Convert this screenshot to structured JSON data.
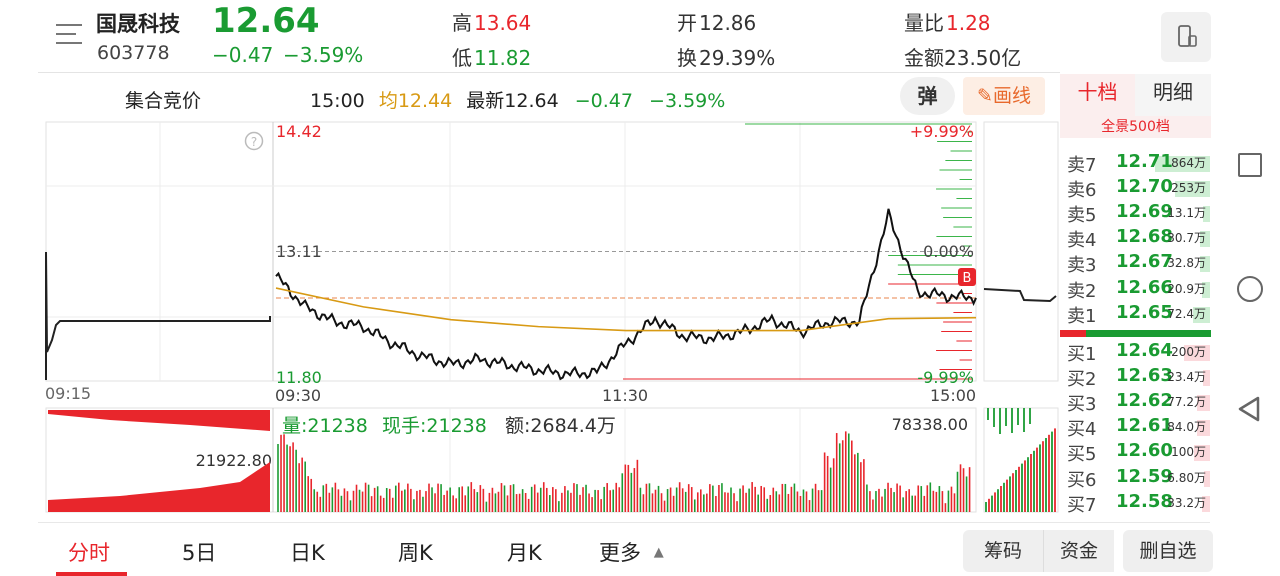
{
  "stock": {
    "name": "国晟科技",
    "code": "603778",
    "price": "12.64",
    "change": "−0.47",
    "change_pct": "−3.59%"
  },
  "stats": {
    "high_label": "高",
    "high": "13.64",
    "low_label": "低",
    "low": "11.82",
    "open_label": "开",
    "open": "12.86",
    "turnover_label": "换",
    "turnover": "29.39%",
    "volratio_label": "量比",
    "volratio": "1.28",
    "amount_label": "金额",
    "amount": "23.50亿"
  },
  "subheader": {
    "label": "集合竞价",
    "time": "15:00",
    "avg_label": "均",
    "avg": "12.44",
    "latest_label": "最新",
    "latest": "12.64",
    "change": "−0.47",
    "change_pct": "−3.59%",
    "bullet_label": "弹",
    "draw_label": "画线"
  },
  "chart_data": {
    "type": "line",
    "title": "",
    "xlabel": "",
    "ylabel": "",
    "ylim": [
      11.8,
      14.42
    ],
    "y_ticks": [
      "14.42",
      "13.11",
      "11.80"
    ],
    "pct_ticks": [
      "+9.99%",
      "0.00%",
      "-9.99%"
    ],
    "x_ticks": [
      "09:15",
      "09:30",
      "11:30",
      "15:00"
    ],
    "prev_close": 13.11,
    "series": [
      {
        "x": [
          "09:30",
          "09:40",
          "09:50",
          "10:00",
          "10:10",
          "10:20",
          "10:30",
          "10:40",
          "10:50",
          "11:00",
          "11:10",
          "11:20",
          "11:30",
          "13:10",
          "13:20",
          "13:30",
          "13:40",
          "13:50",
          "14:00",
          "14:10",
          "14:20",
          "14:30",
          "14:40",
          "14:50",
          "15:00"
        ],
        "values": [
          12.86,
          12.55,
          12.4,
          12.35,
          12.18,
          12.05,
          11.97,
          12.02,
          11.96,
          11.91,
          11.87,
          11.89,
          12.18,
          12.43,
          12.25,
          12.23,
          12.3,
          12.42,
          12.3,
          12.4,
          12.4,
          13.48,
          12.7,
          12.66,
          12.64
        ]
      },
      {
        "x": [
          "09:30",
          "10:00",
          "10:30",
          "11:00",
          "11:30",
          "13:30",
          "14:00",
          "14:30",
          "15:00"
        ],
        "values": [
          12.74,
          12.55,
          12.42,
          12.35,
          12.31,
          12.31,
          12.31,
          12.43,
          12.44
        ]
      }
    ],
    "volume": {
      "label": "量",
      "value": "21238",
      "hand_label": "现手",
      "hand_value": "21238",
      "amount_label": "额",
      "amount_value": "2684.4万",
      "max_label": "78338.00",
      "auction_label": "21922.80"
    }
  },
  "order_book": {
    "tab_active": "十档",
    "tab_other": "明细",
    "banner": "全景500档",
    "asks": [
      {
        "label": "卖7",
        "price": "12.71",
        "vol": "864万",
        "frac": 0.95
      },
      {
        "label": "卖6",
        "price": "12.70",
        "vol": "253万",
        "frac": 0.6
      },
      {
        "label": "卖5",
        "price": "12.69",
        "vol": "13.1万",
        "frac": 0.12
      },
      {
        "label": "卖4",
        "price": "12.68",
        "vol": "30.7万",
        "frac": 0.18
      },
      {
        "label": "卖3",
        "price": "12.67",
        "vol": "32.8万",
        "frac": 0.18
      },
      {
        "label": "卖2",
        "price": "12.66",
        "vol": "20.9万",
        "frac": 0.14
      },
      {
        "label": "卖1",
        "price": "12.65",
        "vol": "72.4万",
        "frac": 0.3
      }
    ],
    "bids": [
      {
        "label": "买1",
        "price": "12.64",
        "vol": "200万",
        "frac": 0.45
      },
      {
        "label": "买2",
        "price": "12.63",
        "vol": "23.4万",
        "frac": 0.12
      },
      {
        "label": "买3",
        "price": "12.62",
        "vol": "77.2万",
        "frac": 0.22
      },
      {
        "label": "买4",
        "price": "12.61",
        "vol": "84.0万",
        "frac": 0.22
      },
      {
        "label": "买5",
        "price": "12.60",
        "vol": "100万",
        "frac": 0.28
      },
      {
        "label": "买6",
        "price": "12.59",
        "vol": "6.80万",
        "frac": 0.06
      },
      {
        "label": "买7",
        "price": "12.58",
        "vol": "33.2万",
        "frac": 0.14
      }
    ]
  },
  "bottom_tabs": [
    "分时",
    "5日",
    "日K",
    "周K",
    "月K",
    "更多"
  ],
  "bottom_buttons": [
    "筹码",
    "资金",
    "删自选"
  ],
  "colors": {
    "up": "#e8262c",
    "down": "#1a9b32",
    "avg": "#d89a14"
  }
}
